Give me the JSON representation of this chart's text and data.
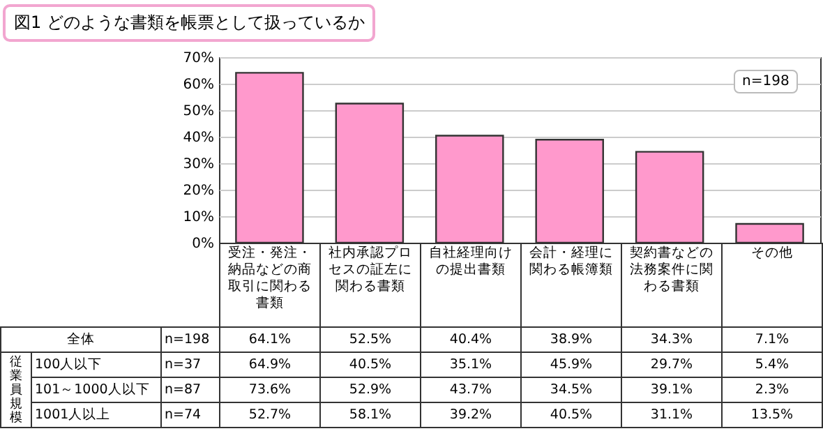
{
  "chart_data": {
    "type": "bar",
    "title": "図1 どのような書類を帳票として扱っているか",
    "categories": [
      "受注・発注・納品などの商取引に関わる書類",
      "社内承認プロセスの証左に関わる書類",
      "自社経理向けの提出書類",
      "会計・経理に関わる帳簿類",
      "契約書などの法務案件に関わる書類",
      "その他"
    ],
    "series": [
      {
        "name": "全体",
        "color": "#ff99cc",
        "values": [
          64.1,
          52.5,
          40.4,
          38.9,
          34.3,
          7.1
        ],
        "value_labels": [
          "64.1%",
          "52.5%",
          "40.4%",
          "38.9%",
          "34.3%",
          "7.1%"
        ]
      }
    ],
    "ylim": [
      0,
      70
    ],
    "yticks": [
      {
        "value": 0,
        "label": "0%"
      },
      {
        "value": 10,
        "label": "10%"
      },
      {
        "value": 20,
        "label": "20%"
      },
      {
        "value": 30,
        "label": "30%"
      },
      {
        "value": 40,
        "label": "40%"
      },
      {
        "value": 50,
        "label": "50%"
      },
      {
        "value": 60,
        "label": "60%"
      },
      {
        "value": 70,
        "label": "70%"
      }
    ],
    "grid": "y",
    "annotations": [
      "n=198",
      "n=198",
      "従業員規模",
      "100人以下",
      "n=37",
      "64.9%",
      "40.5%",
      "35.1%",
      "45.9%",
      "29.7%",
      "5.4%",
      "101～1000人以下",
      "n=87",
      "73.6%",
      "52.9%",
      "43.7%",
      "34.5%",
      "39.1%",
      "2.3%",
      "1001人以上",
      "n=74",
      "52.7%",
      "58.1%",
      "39.2%",
      "40.5%",
      "31.1%",
      "13.5%"
    ]
  }
}
